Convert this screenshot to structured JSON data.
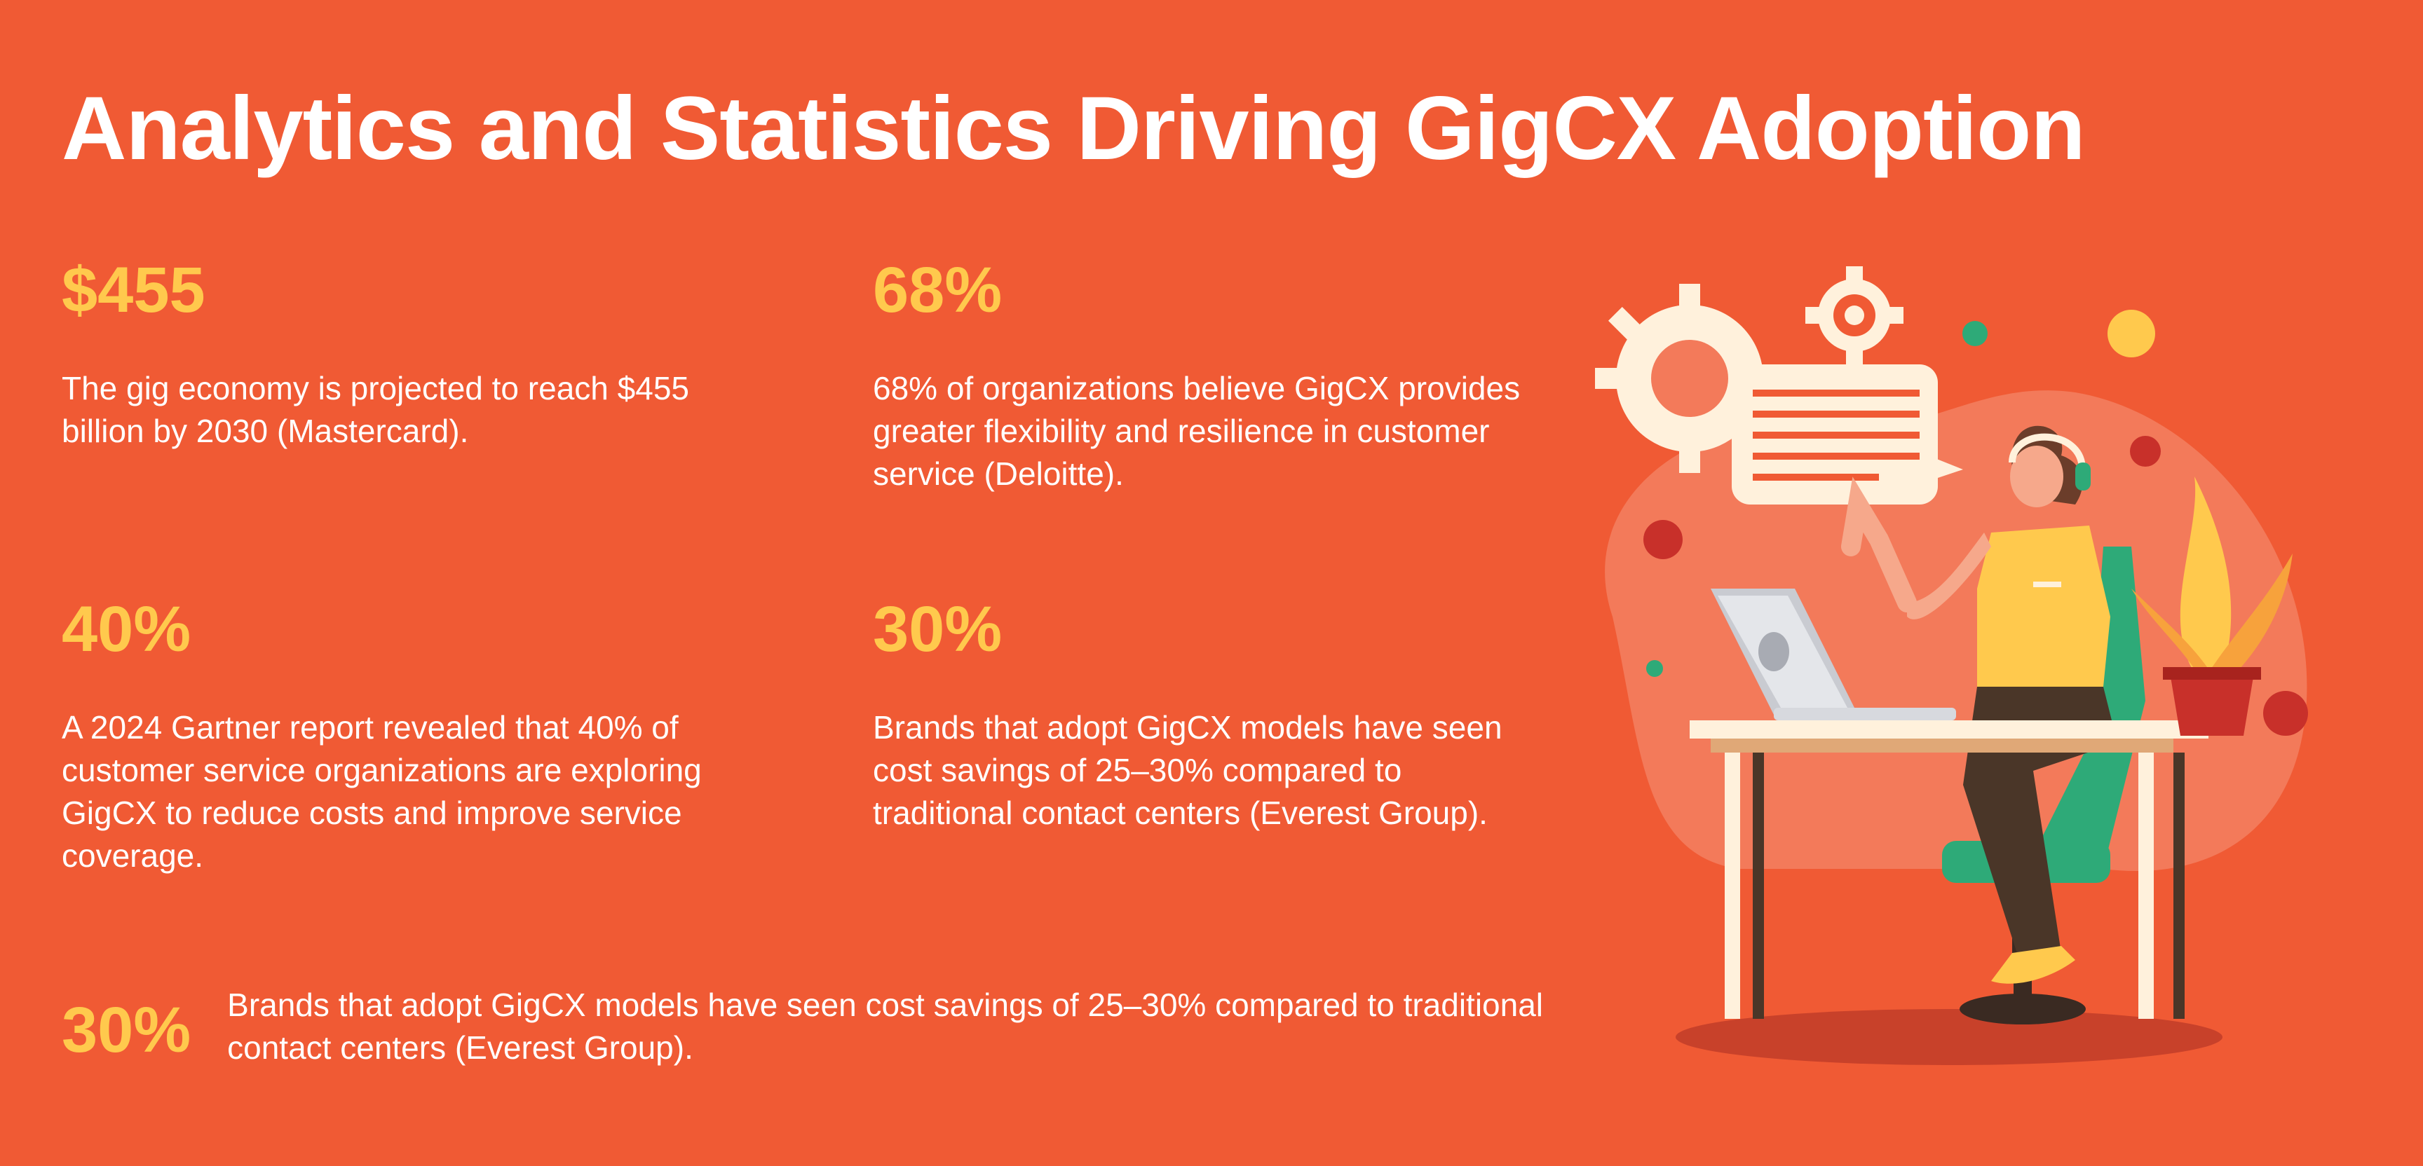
{
  "title": "Analytics and Statistics Driving GigCX Adoption",
  "colors": {
    "background": "#F05A34",
    "accent": "#FFC94D",
    "text": "#FFFFFF"
  },
  "stats": [
    {
      "value": "$455",
      "text": "The gig economy is projected to reach $455 billion by 2030 (Mastercard)."
    },
    {
      "value": "68%",
      "text": "68% of organizations believe GigCX provides greater flexibility and resilience in customer service (Deloitte)."
    },
    {
      "value": "40%",
      "text": "A 2024 Gartner report revealed that 40% of customer service organizations are exploring GigCX to reduce costs and improve service coverage."
    },
    {
      "value": "30%",
      "text": "Brands that adopt GigCX models have seen cost savings of 25–30% compared to traditional contact centers (Everest Group)."
    },
    {
      "value": "30%",
      "text": "Brands that adopt GigCX models have seen cost savings of 25–30% compared to traditional contact centers (Everest Group)."
    }
  ],
  "illustration": {
    "icons": [
      "gear-icon",
      "chat-bubble-icon",
      "headset-icon",
      "laptop-icon",
      "plant-icon"
    ]
  }
}
